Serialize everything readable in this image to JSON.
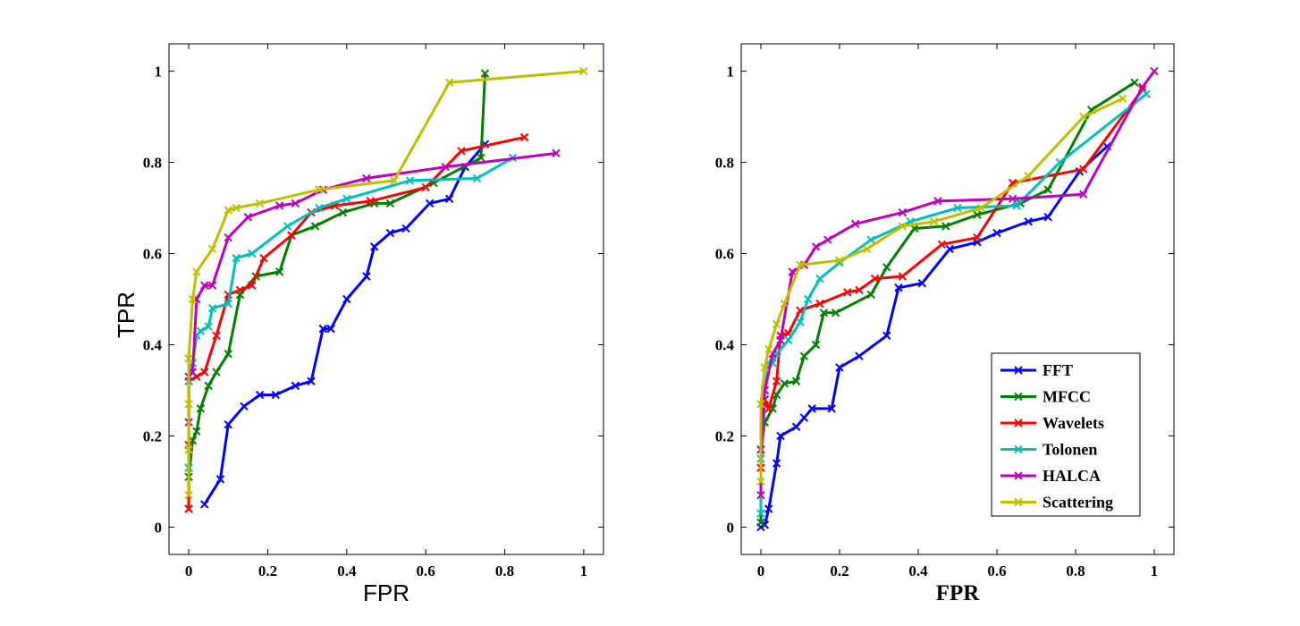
{
  "colors": {
    "FFT": "#0000ff",
    "MFCC": "#007f00",
    "Wavelets": "#ff0000",
    "Tolonen": "#00bfbf",
    "HALCA": "#bf00bf",
    "Scattering": "#bfbf00"
  },
  "chart_data": [
    {
      "type": "line",
      "xlabel": "FPR",
      "ylabel": "TPR",
      "xlim": [
        -0.05,
        1.05
      ],
      "ylim": [
        -0.06,
        1.06
      ],
      "xticks": [
        "0",
        "0.2",
        "0.4",
        "0.6",
        "0.8",
        "1"
      ],
      "yticks": [
        "0",
        "0.2",
        "0.4",
        "0.6",
        "0.8",
        "1"
      ],
      "legend": false,
      "series": [
        {
          "name": "FFT",
          "x": [
            0.04,
            0.08,
            0.1,
            0.14,
            0.18,
            0.22,
            0.27,
            0.31,
            0.34,
            0.36,
            0.4,
            0.45,
            0.47,
            0.51,
            0.55,
            0.61,
            0.66,
            0.7,
            0.75
          ],
          "y": [
            0.05,
            0.105,
            0.225,
            0.265,
            0.29,
            0.29,
            0.31,
            0.32,
            0.435,
            0.435,
            0.5,
            0.55,
            0.615,
            0.645,
            0.655,
            0.71,
            0.72,
            0.79,
            0.84
          ]
        },
        {
          "name": "MFCC",
          "x": [
            0,
            0,
            0.01,
            0.02,
            0.03,
            0.05,
            0.07,
            0.1,
            0.13,
            0.17,
            0.23,
            0.26,
            0.32,
            0.39,
            0.47,
            0.51,
            0.62,
            0.74,
            0.75
          ],
          "y": [
            0.04,
            0.11,
            0.19,
            0.21,
            0.26,
            0.31,
            0.34,
            0.38,
            0.51,
            0.55,
            0.56,
            0.64,
            0.66,
            0.69,
            0.71,
            0.71,
            0.755,
            0.81,
            0.995
          ]
        },
        {
          "name": "Wavelets",
          "x": [
            0,
            0,
            0,
            0.02,
            0.04,
            0.07,
            0.1,
            0.13,
            0.16,
            0.19,
            0.26,
            0.31,
            0.37,
            0.46,
            0.6,
            0.69,
            0.85
          ],
          "y": [
            0.04,
            0.18,
            0.32,
            0.33,
            0.34,
            0.42,
            0.51,
            0.52,
            0.53,
            0.59,
            0.64,
            0.69,
            0.705,
            0.715,
            0.745,
            0.825,
            0.855
          ]
        },
        {
          "name": "Tolonen",
          "x": [
            0,
            0,
            0.01,
            0.02,
            0.03,
            0.05,
            0.06,
            0.1,
            0.12,
            0.16,
            0.25,
            0.33,
            0.4,
            0.56,
            0.73,
            0.82
          ],
          "y": [
            0.13,
            0.32,
            0.36,
            0.42,
            0.43,
            0.44,
            0.48,
            0.49,
            0.59,
            0.6,
            0.66,
            0.7,
            0.72,
            0.76,
            0.765,
            0.81
          ]
        },
        {
          "name": "HALCA",
          "x": [
            0,
            0,
            0.01,
            0.02,
            0.04,
            0.06,
            0.1,
            0.15,
            0.23,
            0.27,
            0.34,
            0.45,
            0.65,
            0.93
          ],
          "y": [
            0.23,
            0.33,
            0.34,
            0.5,
            0.53,
            0.53,
            0.635,
            0.68,
            0.705,
            0.71,
            0.74,
            0.765,
            0.79,
            0.82
          ]
        },
        {
          "name": "Scattering",
          "x": [
            0,
            0,
            0,
            0,
            0.01,
            0.02,
            0.06,
            0.1,
            0.12,
            0.18,
            0.33,
            0.52,
            0.66,
            1.0
          ],
          "y": [
            0.07,
            0.17,
            0.27,
            0.37,
            0.5,
            0.56,
            0.61,
            0.695,
            0.7,
            0.71,
            0.74,
            0.76,
            0.975,
            1.0
          ]
        }
      ]
    },
    {
      "type": "line",
      "xlabel": "FPR",
      "ylabel": "",
      "xlim": [
        -0.05,
        1.05
      ],
      "ylim": [
        -0.06,
        1.06
      ],
      "xticks": [
        "0",
        "0.2",
        "0.4",
        "0.6",
        "0.8",
        "1"
      ],
      "yticks": [
        "0",
        "0.2",
        "0.4",
        "0.6",
        "0.8",
        "1"
      ],
      "legend": true,
      "legend_position": "bottom-right",
      "series": [
        {
          "name": "FFT",
          "x": [
            0,
            0.01,
            0.02,
            0.04,
            0.05,
            0.09,
            0.11,
            0.13,
            0.18,
            0.2,
            0.25,
            0.32,
            0.35,
            0.41,
            0.48,
            0.55,
            0.6,
            0.68,
            0.73,
            0.81,
            0.88
          ],
          "y": [
            0,
            0.005,
            0.04,
            0.14,
            0.2,
            0.22,
            0.24,
            0.26,
            0.26,
            0.35,
            0.375,
            0.42,
            0.525,
            0.535,
            0.61,
            0.625,
            0.645,
            0.67,
            0.68,
            0.78,
            0.835
          ]
        },
        {
          "name": "MFCC",
          "x": [
            0,
            0,
            0.01,
            0.03,
            0.04,
            0.06,
            0.09,
            0.11,
            0.14,
            0.16,
            0.19,
            0.28,
            0.32,
            0.39,
            0.47,
            0.55,
            0.66,
            0.73,
            0.84,
            0.95
          ],
          "y": [
            0.01,
            0.17,
            0.23,
            0.26,
            0.29,
            0.315,
            0.32,
            0.375,
            0.4,
            0.47,
            0.47,
            0.51,
            0.57,
            0.655,
            0.66,
            0.685,
            0.71,
            0.74,
            0.915,
            0.975
          ]
        },
        {
          "name": "Wavelets",
          "x": [
            0,
            0.01,
            0.02,
            0.04,
            0.05,
            0.07,
            0.1,
            0.15,
            0.22,
            0.25,
            0.29,
            0.36,
            0.46,
            0.55,
            0.64,
            0.82,
            0.97
          ],
          "y": [
            0.13,
            0.28,
            0.26,
            0.32,
            0.42,
            0.425,
            0.475,
            0.49,
            0.515,
            0.52,
            0.545,
            0.55,
            0.62,
            0.635,
            0.755,
            0.785,
            0.96
          ]
        },
        {
          "name": "Tolonen",
          "x": [
            0,
            0,
            0.01,
            0.02,
            0.03,
            0.04,
            0.07,
            0.1,
            0.12,
            0.15,
            0.2,
            0.28,
            0.38,
            0.5,
            0.65,
            0.76,
            0.98
          ],
          "y": [
            0.03,
            0.15,
            0.3,
            0.36,
            0.36,
            0.38,
            0.41,
            0.45,
            0.5,
            0.545,
            0.58,
            0.63,
            0.67,
            0.7,
            0.705,
            0.8,
            0.95
          ]
        },
        {
          "name": "HALCA",
          "x": [
            0,
            0,
            0.01,
            0.03,
            0.05,
            0.08,
            0.11,
            0.14,
            0.17,
            0.24,
            0.36,
            0.45,
            0.64,
            0.82,
            0.97,
            1.0
          ],
          "y": [
            0.07,
            0.17,
            0.3,
            0.38,
            0.41,
            0.56,
            0.575,
            0.615,
            0.63,
            0.665,
            0.69,
            0.715,
            0.72,
            0.73,
            0.965,
            1.0
          ]
        },
        {
          "name": "Scattering",
          "x": [
            0,
            0,
            0.01,
            0.02,
            0.04,
            0.06,
            0.1,
            0.2,
            0.27,
            0.36,
            0.44,
            0.56,
            0.68,
            0.82,
            0.92
          ],
          "y": [
            0.1,
            0.27,
            0.35,
            0.39,
            0.445,
            0.49,
            0.575,
            0.585,
            0.61,
            0.66,
            0.67,
            0.7,
            0.77,
            0.9,
            0.94
          ]
        }
      ]
    }
  ]
}
